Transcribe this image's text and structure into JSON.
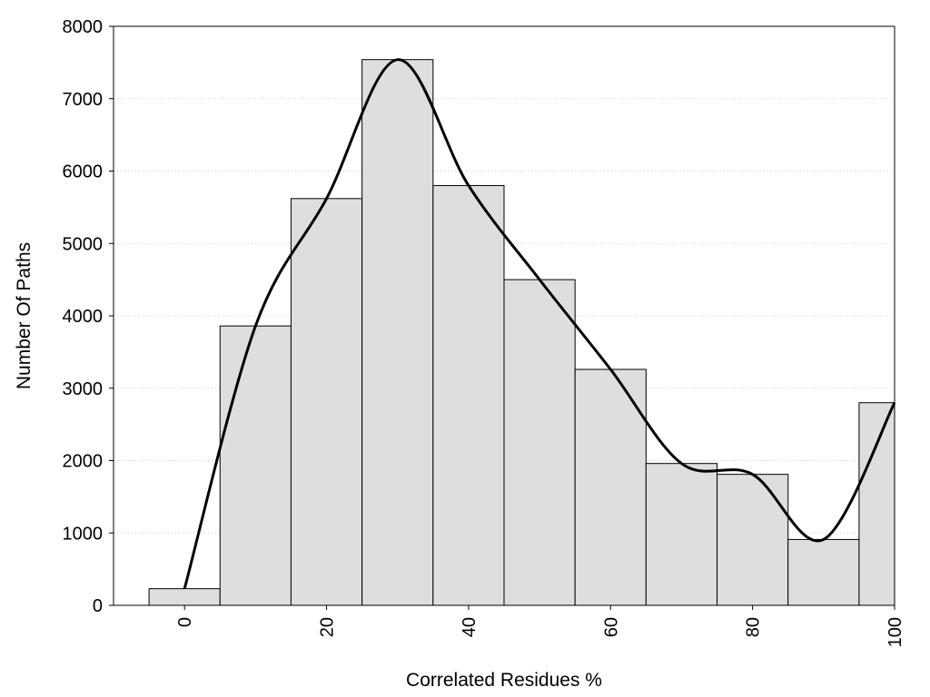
{
  "chart_data": {
    "type": "bar",
    "subtype": "histogram",
    "title": "",
    "xlabel": "Correlated Residues %",
    "ylabel": "Number Of Paths",
    "x": [
      0,
      10,
      20,
      30,
      40,
      50,
      60,
      70,
      80,
      90,
      100
    ],
    "values": [
      230,
      3860,
      5620,
      7540,
      5800,
      4500,
      3260,
      1960,
      1810,
      910,
      2800
    ],
    "bin_width": 10,
    "xlim": [
      -10,
      100
    ],
    "ylim": [
      0,
      8000
    ],
    "xticks": [
      "0",
      "20",
      "40",
      "60",
      "80",
      "100"
    ],
    "yticks": [
      "0",
      "1000",
      "2000",
      "3000",
      "4000",
      "5000",
      "6000",
      "7000",
      "8000"
    ],
    "grid": "horizontal dotted",
    "series": [
      {
        "kind": "bars",
        "color": "#dedede"
      },
      {
        "kind": "smooth-line",
        "color": "#000000",
        "x": [
          0,
          10,
          20,
          30,
          40,
          50,
          60,
          70,
          80,
          90,
          100
        ],
        "y": [
          230,
          3860,
          5620,
          7540,
          5800,
          4500,
          3260,
          1960,
          1810,
          910,
          2800
        ]
      }
    ]
  }
}
